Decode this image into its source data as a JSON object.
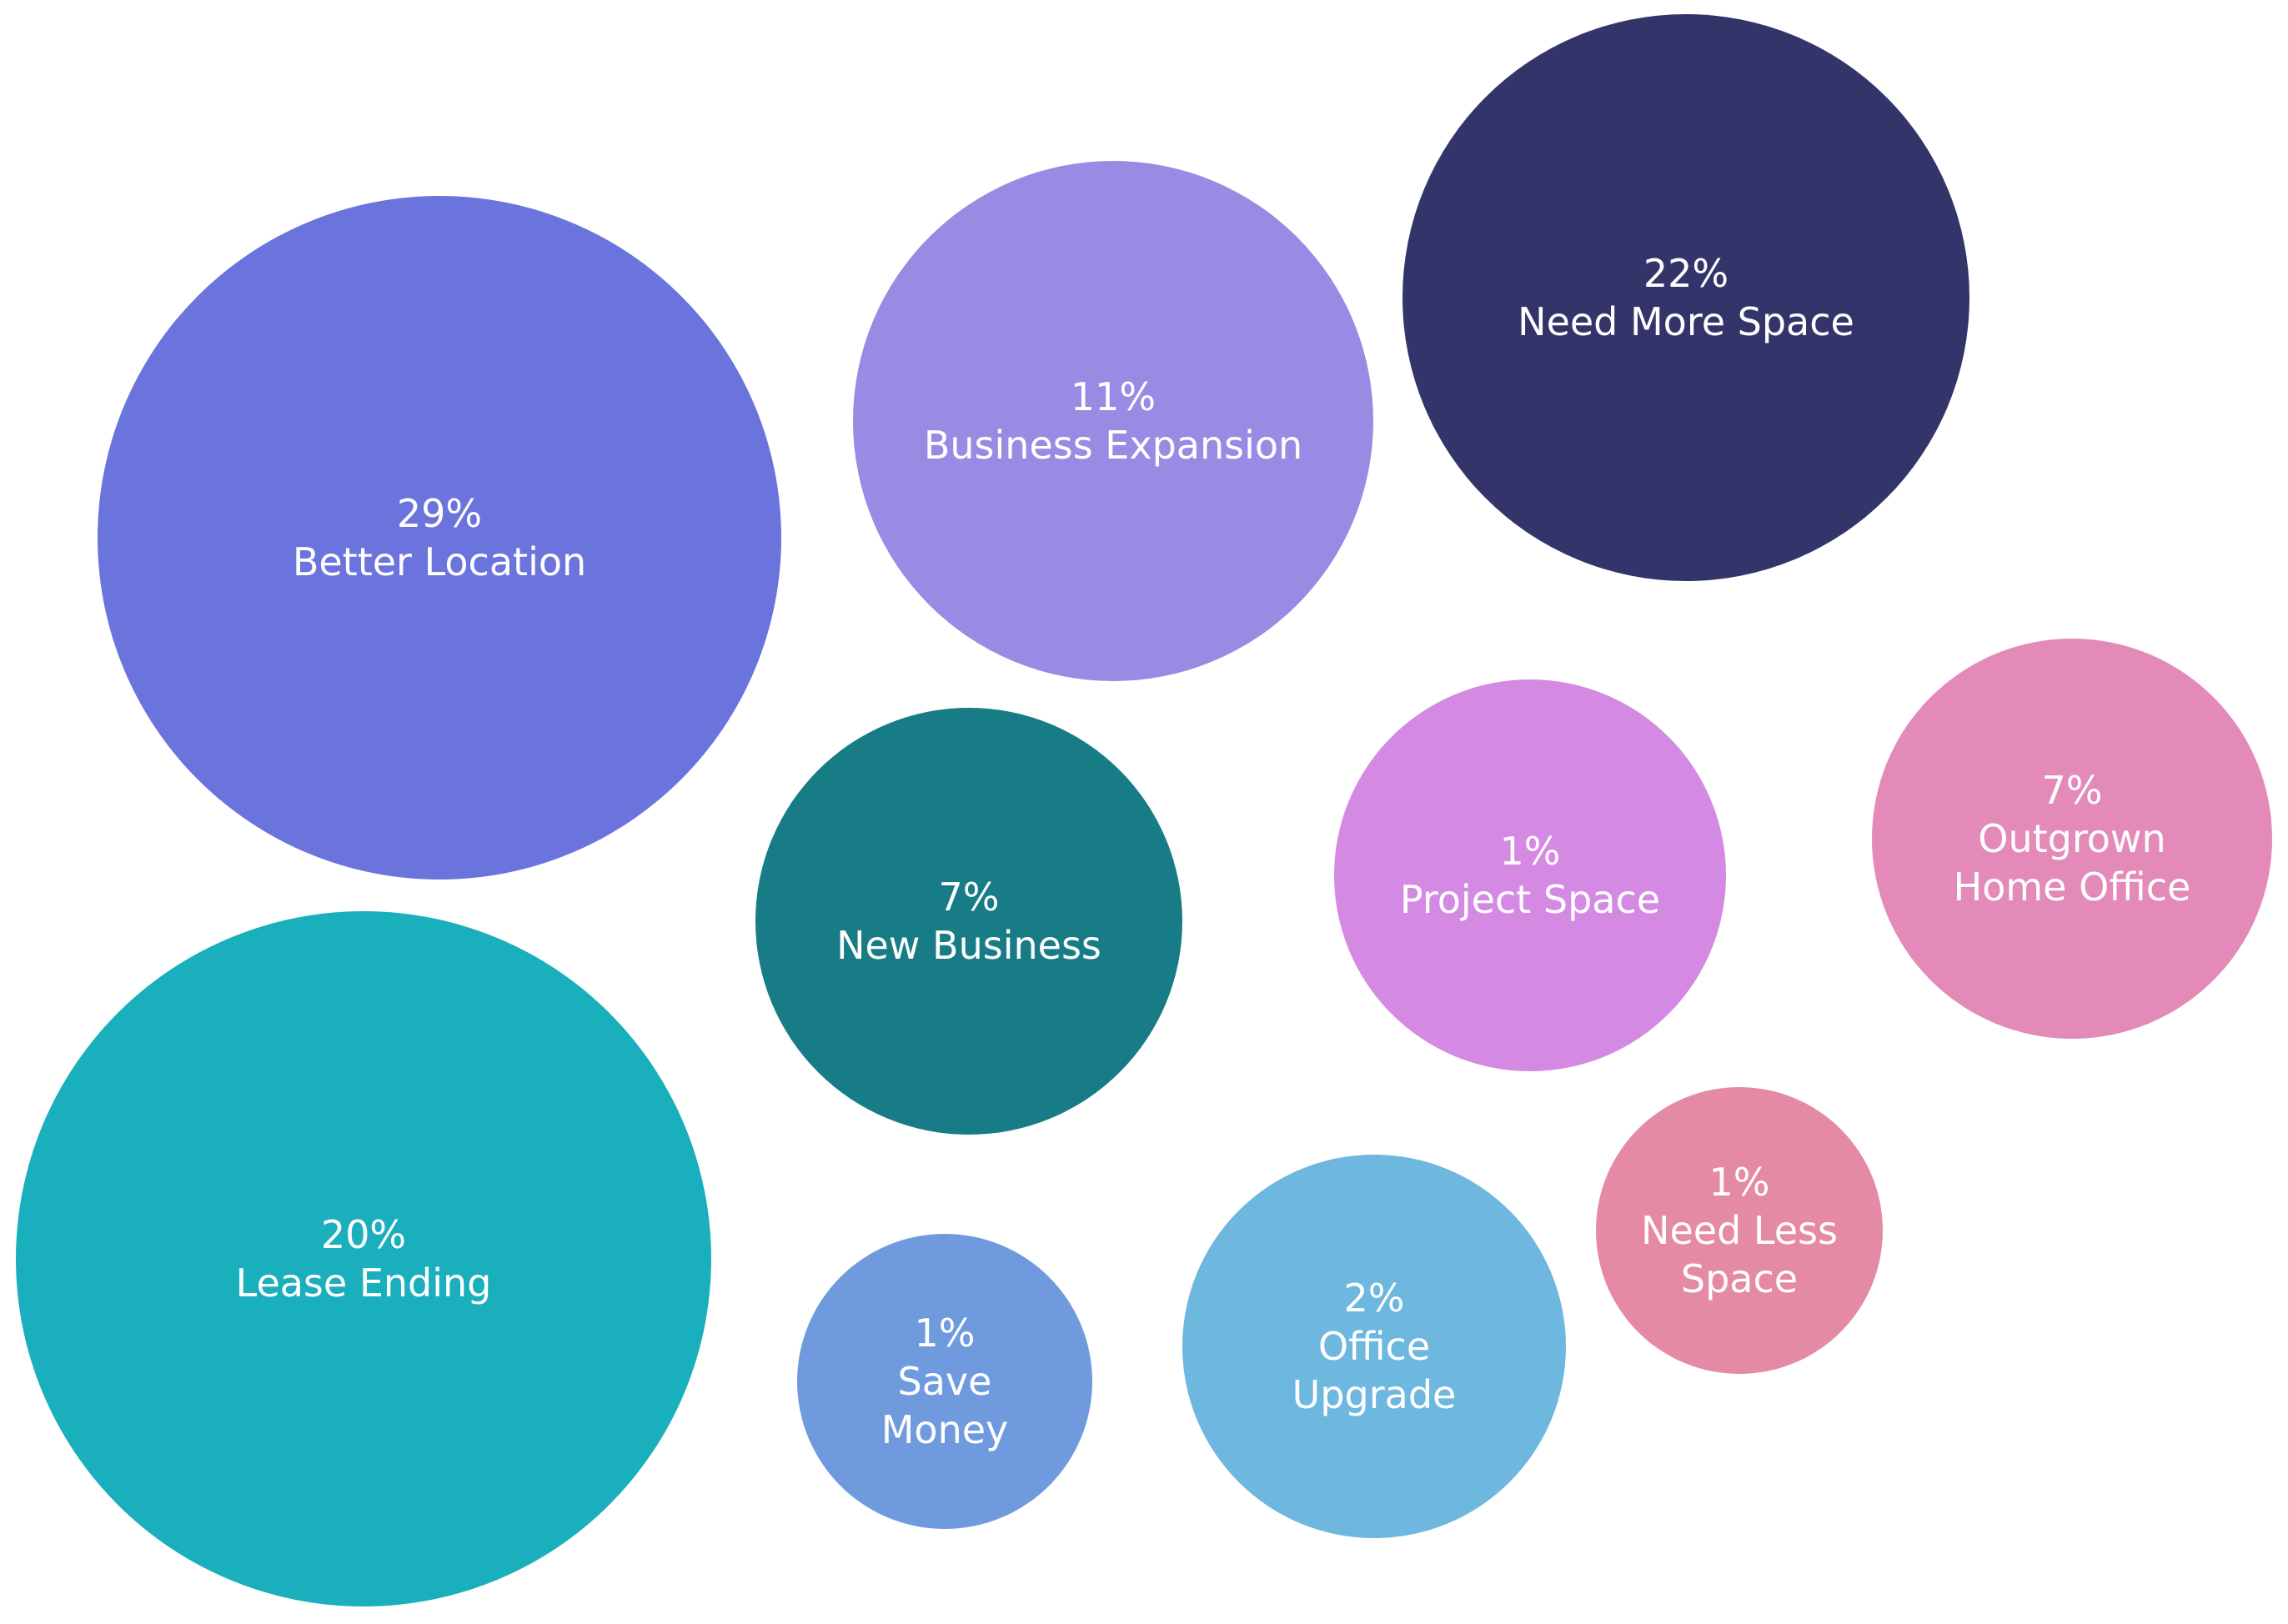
{
  "chart_data": {
    "type": "bubble",
    "unit": "%",
    "series": [
      {
        "name": "Better Location",
        "label_lines": [
          "29%",
          "Better Location"
        ],
        "value": 29,
        "color": "#6B74DC"
      },
      {
        "name": "Business Expansion",
        "label_lines": [
          "11%",
          "Business Expansion"
        ],
        "value": 11,
        "color": "#9B8AE3"
      },
      {
        "name": "Need More Space",
        "label_lines": [
          "22%",
          "Need More Space"
        ],
        "value": 22,
        "color": "#33356A"
      },
      {
        "name": "New Business",
        "label_lines": [
          "7%",
          "New Business"
        ],
        "value": 7,
        "color": "#177C86"
      },
      {
        "name": "Project Space",
        "label_lines": [
          "1%",
          "Project Space"
        ],
        "value": 1,
        "color": "#D48AE3"
      },
      {
        "name": "Outgrown Home Office",
        "label_lines": [
          "7%",
          "Outgrown",
          "Home Office"
        ],
        "value": 7,
        "color": "#E48AB9"
      },
      {
        "name": "Lease Ending",
        "label_lines": [
          "20%",
          "Lease Ending"
        ],
        "value": 20,
        "color": "#1AAFBC"
      },
      {
        "name": "Save Money",
        "label_lines": [
          "1%",
          "Save",
          "Money"
        ],
        "value": 1,
        "color": "#6F9BDE"
      },
      {
        "name": "Office Upgrade",
        "label_lines": [
          "2%",
          "Office",
          "Upgrade"
        ],
        "value": 2,
        "color": "#6EB7DF"
      },
      {
        "name": "Need Less Space",
        "label_lines": [
          "1%",
          "Need Less",
          "Space"
        ],
        "value": 1,
        "color": "#E58AA4"
      }
    ]
  }
}
